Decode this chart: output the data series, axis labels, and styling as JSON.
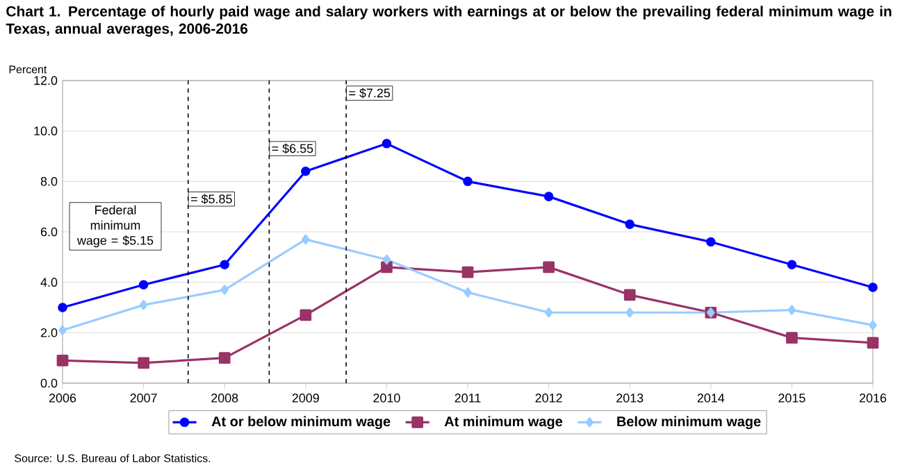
{
  "chart_data": {
    "type": "line",
    "title": "Chart 1. Percentage of hourly paid wage and salary workers with earnings at or below the prevailing federal minimum wage in Texas, annual averages, 2006-2016",
    "ylabel": "Percent",
    "x": [
      2006,
      2007,
      2008,
      2009,
      2010,
      2011,
      2012,
      2013,
      2014,
      2015,
      2016
    ],
    "xlim": [
      2006,
      2016
    ],
    "xticks": [
      2006,
      2007,
      2008,
      2009,
      2010,
      2011,
      2012,
      2013,
      2014,
      2015,
      2016
    ],
    "ylim": [
      0,
      12
    ],
    "yticks": [
      {
        "value": 0,
        "label": "0.0"
      },
      {
        "value": 2,
        "label": "2.0"
      },
      {
        "value": 4,
        "label": "4.0"
      },
      {
        "value": 6,
        "label": "6.0"
      },
      {
        "value": 8,
        "label": "8.0"
      },
      {
        "value": 10,
        "label": "10.0"
      },
      {
        "value": 12,
        "label": "12.0"
      }
    ],
    "grid": "y",
    "legend": "bottom",
    "series": [
      {
        "name": "At or below minimum wage",
        "color": "#0000ff",
        "marker": "circle",
        "values": [
          3.0,
          3.9,
          4.7,
          8.4,
          9.5,
          8.0,
          7.4,
          6.3,
          5.6,
          4.7,
          3.8
        ]
      },
      {
        "name": "At minimum wage",
        "color": "#993366",
        "marker": "square",
        "values": [
          0.9,
          0.8,
          1.0,
          2.7,
          4.6,
          4.4,
          4.6,
          3.5,
          2.8,
          1.8,
          1.6
        ]
      },
      {
        "name": "Below minimum wage",
        "color": "#99ccff",
        "marker": "diamond",
        "values": [
          2.1,
          3.1,
          3.7,
          5.7,
          4.9,
          3.6,
          2.8,
          2.8,
          2.8,
          2.9,
          2.3
        ]
      }
    ],
    "ref_lines": [
      {
        "axis": "x",
        "value": 2007.55,
        "color": "#000000",
        "line_style": "dashed"
      },
      {
        "axis": "x",
        "value": 2008.55,
        "color": "#000000",
        "line_style": "dashed"
      },
      {
        "axis": "x",
        "value": 2009.5,
        "color": "#000000",
        "line_style": "dashed"
      }
    ],
    "annotations": [
      "Federal minimum wage = $5.15",
      "Source: U.S. Bureau of Labor Statistics.",
      {
        "text": "= $5.85",
        "x": 2007.55,
        "y": 7.3
      },
      {
        "text": "= $6.55",
        "x": 2008.55,
        "y": 9.3
      },
      {
        "text": "= $7.25",
        "x": 2009.5,
        "y": 11.5
      }
    ]
  }
}
